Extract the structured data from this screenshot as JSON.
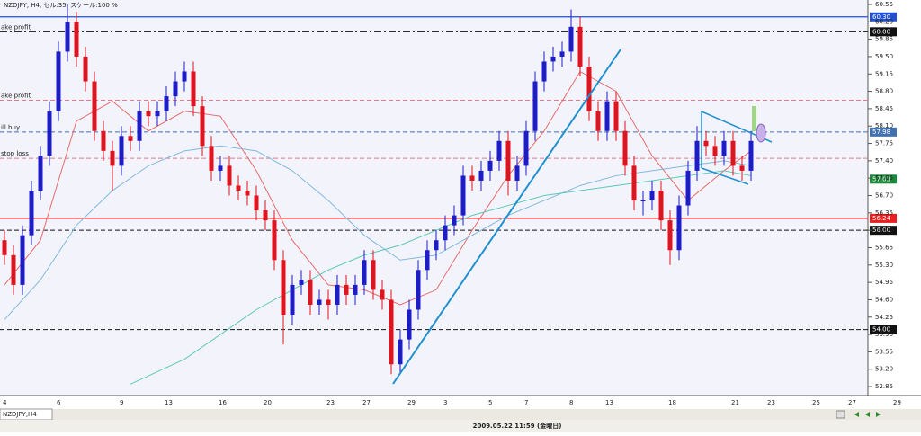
{
  "chart_data": {
    "type": "candlestick",
    "title": "NZDJPY, H4, セル:35, スケール:100 %",
    "categories": [
      "4",
      null,
      null,
      null,
      null,
      null,
      "6",
      null,
      null,
      null,
      null,
      null,
      null,
      "9",
      null,
      null,
      null,
      null,
      "13",
      null,
      null,
      null,
      null,
      null,
      "16",
      null,
      null,
      null,
      null,
      "20",
      null,
      null,
      null,
      null,
      null,
      null,
      "23",
      null,
      null,
      null,
      "27",
      null,
      null,
      null,
      null,
      "29",
      null,
      null,
      null,
      "3",
      null,
      null,
      null,
      null,
      "5",
      null,
      null,
      null,
      "7",
      null,
      null,
      null,
      null,
      "8",
      null,
      null,
      null,
      "13",
      null,
      null,
      null,
      null,
      null,
      null,
      "18",
      null,
      null,
      null,
      null,
      null,
      null,
      "21",
      null,
      null,
      null,
      "23",
      null,
      null,
      null,
      null,
      "25",
      null,
      null,
      null,
      "27",
      null,
      null,
      null,
      null,
      "29"
    ],
    "open": [
      55.8,
      55.5,
      54.9,
      55.9,
      56.8,
      57.5,
      58.4,
      59.6,
      60.2,
      59.5,
      59.0,
      58.0,
      57.6,
      57.3,
      57.9,
      57.8,
      58.4,
      58.3,
      58.4,
      58.7,
      59.0,
      59.2,
      58.5,
      57.7,
      57.2,
      57.3,
      56.9,
      56.8,
      56.7,
      56.4,
      56.2,
      55.4,
      54.3,
      54.9,
      55.0,
      54.5,
      54.6,
      54.5,
      54.9,
      54.7,
      54.9,
      55.4,
      54.8,
      54.6,
      53.3,
      53.8,
      54.4,
      55.2,
      55.6,
      55.8,
      56.1,
      56.3,
      57.1,
      57.0,
      57.2,
      57.4,
      57.8,
      57.0,
      57.3,
      58.0,
      59.0,
      59.4,
      59.5,
      59.6,
      60.1,
      59.3,
      58.4,
      58.0,
      58.6,
      58.0,
      57.3,
      56.6,
      56.6,
      56.8,
      56.2,
      55.6,
      56.5,
      57.2,
      57.8,
      57.7,
      57.5,
      57.8,
      57.3,
      57.2,
      null,
      null,
      null,
      null,
      null,
      null,
      null,
      null,
      null,
      null,
      null,
      null,
      null,
      null,
      null,
      null
    ],
    "high": [
      56.0,
      55.7,
      56.1,
      57.0,
      57.7,
      58.6,
      59.8,
      60.55,
      60.4,
      59.7,
      59.2,
      58.2,
      57.8,
      58.1,
      58.1,
      58.6,
      58.6,
      58.6,
      58.9,
      59.2,
      59.4,
      59.4,
      58.7,
      57.9,
      57.5,
      57.5,
      57.1,
      57.0,
      56.9,
      56.6,
      56.4,
      55.6,
      55.1,
      55.2,
      55.2,
      54.8,
      54.8,
      55.1,
      55.1,
      55.1,
      55.6,
      55.6,
      55.0,
      54.8,
      54.0,
      54.6,
      55.4,
      55.8,
      56.0,
      56.3,
      56.5,
      57.3,
      57.3,
      57.4,
      57.6,
      58.0,
      58.0,
      57.5,
      58.2,
      59.2,
      59.6,
      59.7,
      59.8,
      60.45,
      60.3,
      59.5,
      58.6,
      58.8,
      58.8,
      58.2,
      57.5,
      56.8,
      57.0,
      57.0,
      56.4,
      56.7,
      57.4,
      58.1,
      58.0,
      57.9,
      58.0,
      58.0,
      57.5,
      58.0,
      null,
      null,
      null,
      null,
      null,
      null,
      null,
      null,
      null,
      null,
      null,
      null,
      null,
      null,
      null,
      null
    ],
    "low": [
      55.3,
      54.7,
      54.7,
      55.7,
      56.6,
      57.3,
      58.2,
      59.4,
      59.3,
      58.8,
      57.8,
      57.4,
      56.8,
      57.1,
      57.6,
      57.6,
      58.1,
      58.1,
      58.2,
      58.5,
      58.8,
      58.3,
      57.5,
      57.0,
      57.0,
      56.7,
      56.6,
      56.5,
      56.2,
      56.0,
      55.2,
      53.7,
      54.1,
      54.7,
      54.3,
      54.3,
      54.2,
      54.3,
      54.5,
      54.5,
      54.7,
      54.6,
      54.4,
      53.1,
      53.1,
      53.6,
      54.2,
      55.0,
      55.4,
      55.6,
      55.9,
      56.1,
      56.8,
      56.8,
      57.0,
      57.2,
      56.7,
      56.8,
      57.1,
      57.8,
      58.8,
      59.2,
      59.3,
      59.4,
      59.1,
      58.2,
      57.8,
      57.8,
      57.8,
      57.1,
      56.4,
      56.3,
      56.4,
      56.0,
      55.3,
      55.4,
      56.3,
      57.0,
      57.5,
      57.3,
      57.3,
      57.1,
      57.0,
      57.0,
      null,
      null,
      null,
      null,
      null,
      null,
      null,
      null,
      null,
      null,
      null,
      null,
      null,
      null,
      null,
      null
    ],
    "close": [
      55.5,
      54.9,
      55.9,
      56.8,
      57.5,
      58.4,
      59.6,
      60.2,
      59.5,
      59.0,
      58.0,
      57.6,
      57.3,
      57.9,
      57.8,
      58.4,
      58.3,
      58.4,
      58.7,
      59.0,
      59.2,
      58.5,
      57.7,
      57.2,
      57.3,
      56.9,
      56.8,
      56.7,
      56.4,
      56.2,
      55.4,
      54.3,
      54.9,
      55.0,
      54.5,
      54.6,
      54.5,
      54.9,
      54.7,
      54.9,
      55.4,
      54.8,
      54.6,
      53.3,
      53.8,
      54.4,
      55.2,
      55.6,
      55.8,
      56.1,
      56.3,
      57.1,
      57.0,
      57.2,
      57.4,
      57.8,
      57.0,
      57.3,
      58.0,
      59.0,
      59.4,
      59.5,
      59.6,
      60.1,
      59.3,
      58.4,
      58.0,
      58.6,
      58.0,
      57.3,
      56.6,
      56.6,
      56.8,
      56.2,
      55.6,
      56.5,
      57.2,
      57.8,
      57.7,
      57.5,
      57.8,
      57.3,
      57.2,
      57.8,
      null,
      null,
      null,
      null,
      null,
      null,
      null,
      null,
      null,
      null,
      null,
      null,
      null,
      null,
      null,
      null
    ],
    "up_color": "#1c1cc8",
    "down_color": "#e0141e",
    "ylim": [
      52.67,
      60.64
    ],
    "yticks": [
      {
        "value": 60.55,
        "label": "60.55"
      },
      {
        "value": 60.2,
        "label": "60.20"
      },
      {
        "value": 59.85,
        "label": "59.85"
      },
      {
        "value": 59.5,
        "label": "59.50"
      },
      {
        "value": 59.15,
        "label": "59.15"
      },
      {
        "value": 58.8,
        "label": "58.80"
      },
      {
        "value": 58.45,
        "label": "58.45"
      },
      {
        "value": 58.1,
        "label": "58.10"
      },
      {
        "value": 57.75,
        "label": "57.75"
      },
      {
        "value": 57.4,
        "label": "57.40"
      },
      {
        "value": 57.05,
        "label": "57.05"
      },
      {
        "value": 56.7,
        "label": "56.70"
      },
      {
        "value": 56.35,
        "label": "56.35"
      },
      {
        "value": 56,
        "label": "56.00"
      },
      {
        "value": 55.65,
        "label": "55.65"
      },
      {
        "value": 55.3,
        "label": "55.30"
      },
      {
        "value": 54.95,
        "label": "54.95"
      },
      {
        "value": 54.6,
        "label": "54.60"
      },
      {
        "value": 54.25,
        "label": "54.25"
      },
      {
        "value": 53.9,
        "label": "53.90"
      },
      {
        "value": 53.55,
        "label": "53.55"
      },
      {
        "value": 53.2,
        "label": "53.20"
      },
      {
        "value": 52.85,
        "label": "52.85"
      }
    ],
    "overlays": [
      {
        "color": "#e86a6a",
        "x": [
          0,
          4,
          8,
          12,
          16,
          20,
          24,
          28,
          32,
          36,
          40,
          44,
          48,
          52,
          56,
          60,
          64,
          68,
          72,
          76,
          80,
          83
        ],
        "values": [
          54.9,
          55.8,
          58.2,
          58.6,
          58.0,
          58.4,
          58.3,
          57.2,
          55.8,
          54.9,
          54.8,
          54.5,
          54.8,
          56.0,
          57.1,
          58.0,
          59.2,
          58.8,
          57.5,
          56.6,
          57.2,
          57.6
        ]
      },
      {
        "color": "#7fb8e0",
        "x": [
          0,
          4,
          8,
          12,
          16,
          20,
          24,
          28,
          32,
          36,
          40,
          44,
          48,
          52,
          56,
          60,
          64,
          68,
          72,
          76,
          80,
          83
        ],
        "values": [
          54.2,
          55.0,
          56.1,
          56.8,
          57.3,
          57.6,
          57.7,
          57.6,
          57.2,
          56.6,
          55.9,
          55.4,
          55.5,
          55.9,
          56.3,
          56.6,
          56.9,
          57.1,
          57.2,
          57.3,
          57.4,
          57.3
        ]
      },
      {
        "color": "#5cc8b8",
        "x": [
          14,
          20,
          24,
          28,
          32,
          36,
          40,
          44,
          48,
          52,
          56,
          60,
          64,
          68,
          72,
          76,
          80,
          83
        ],
        "values": [
          52.9,
          53.4,
          53.9,
          54.4,
          54.8,
          55.2,
          55.5,
          55.7,
          56.0,
          56.3,
          56.5,
          56.7,
          56.8,
          56.9,
          57.0,
          57.1,
          57.2,
          57.1
        ]
      }
    ],
    "levels": [
      {
        "value": 60.3,
        "label": "60.30",
        "color": "#2050d0",
        "dash": "solid"
      },
      {
        "value": 60,
        "label": "60.00",
        "color": "#111111",
        "dash": "dashdot",
        "text": "ake profit"
      },
      {
        "value": 58.62,
        "color": "#e07a8a",
        "dash": "dashed",
        "text": "ake profit"
      },
      {
        "value": 57.98,
        "label": "57.98",
        "color": "#4070b0",
        "dash": "dashed",
        "text": "ill buy"
      },
      {
        "value": 57.45,
        "color": "#e07a8a",
        "dash": "dashed",
        "text": "stop loss"
      },
      {
        "value": 57.03,
        "label": "57.03",
        "color": "#1a8a3a",
        "dash": "none"
      },
      {
        "value": 56.24,
        "label": "56.24",
        "color": "#e82020",
        "dash": "solid"
      },
      {
        "value": 56,
        "label": "56.00",
        "color": "#111111",
        "dash": "dashed"
      },
      {
        "value": 54,
        "label": "54.00",
        "color": "#111111",
        "dash": "dashed"
      }
    ]
  },
  "tab": "NZDJPY,H4",
  "status": "2009.05.22 11:59 (金曜日)"
}
